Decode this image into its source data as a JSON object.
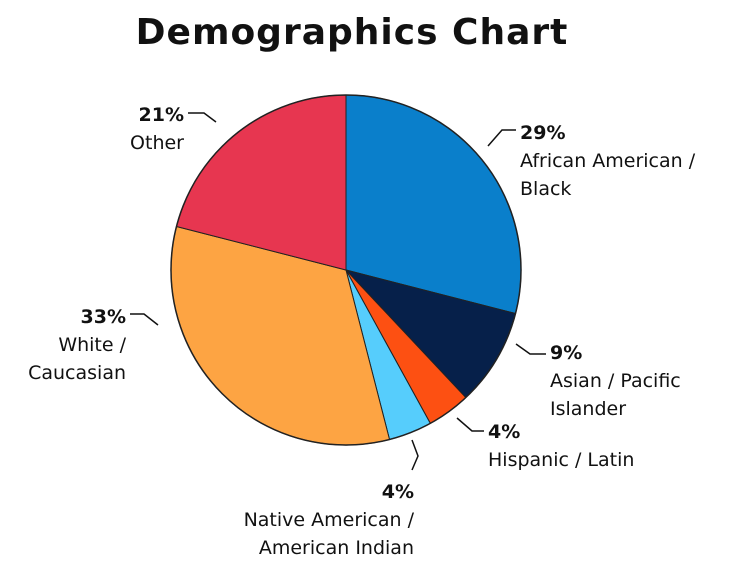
{
  "chart_data": {
    "type": "pie",
    "title": "Demographics Chart",
    "start": "12 o'clock",
    "direction": "clockwise",
    "slices": [
      {
        "key": "african-american",
        "percent_label": "29%",
        "value": 29,
        "name_lines": [
          "African American /",
          "Black"
        ],
        "color": "#0a7fcb"
      },
      {
        "key": "asian",
        "percent_label": "9%",
        "value": 9,
        "name_lines": [
          "Asian / Pacific",
          "Islander"
        ],
        "color": "#06204a"
      },
      {
        "key": "hispanic",
        "percent_label": "4%",
        "value": 4,
        "name_lines": [
          "Hispanic / Latin"
        ],
        "color": "#fd5012"
      },
      {
        "key": "native-american",
        "percent_label": "4%",
        "value": 4,
        "name_lines": [
          "Native American /",
          "American Indian"
        ],
        "color": "#56cdfc"
      },
      {
        "key": "white",
        "percent_label": "33%",
        "value": 33,
        "name_lines": [
          "White /",
          "Caucasian"
        ],
        "color": "#fda443"
      },
      {
        "key": "other",
        "percent_label": "21%",
        "value": 21,
        "name_lines": [
          "Other"
        ],
        "color": "#e73650"
      }
    ]
  }
}
